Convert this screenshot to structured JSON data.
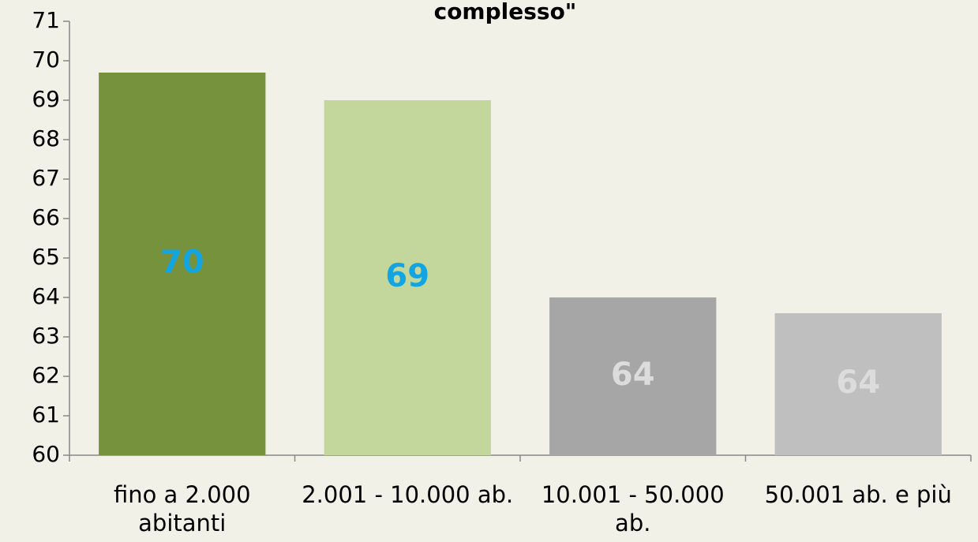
{
  "chart_data": {
    "type": "bar",
    "title": "complesso\"",
    "categories": [
      "fino a 2.000 abitanti",
      "2.001 - 10.000 ab.",
      "10.001 - 50.000 ab.",
      "50.001 ab. e più"
    ],
    "values": [
      69.7,
      69.0,
      64.0,
      63.6
    ],
    "value_labels": [
      "70",
      "69",
      "64",
      "64"
    ],
    "colors": [
      "#76923c",
      "#c3d69b",
      "#a6a6a6",
      "#bfbfbf"
    ],
    "label_colors": [
      "#12a5e2",
      "#12a5e2",
      "#dcdcdc",
      "#dcdcdc"
    ],
    "ylim": [
      60,
      71
    ],
    "yticks": [
      60,
      61,
      62,
      63,
      64,
      65,
      66,
      67,
      68,
      69,
      70,
      71
    ],
    "grid": false
  }
}
